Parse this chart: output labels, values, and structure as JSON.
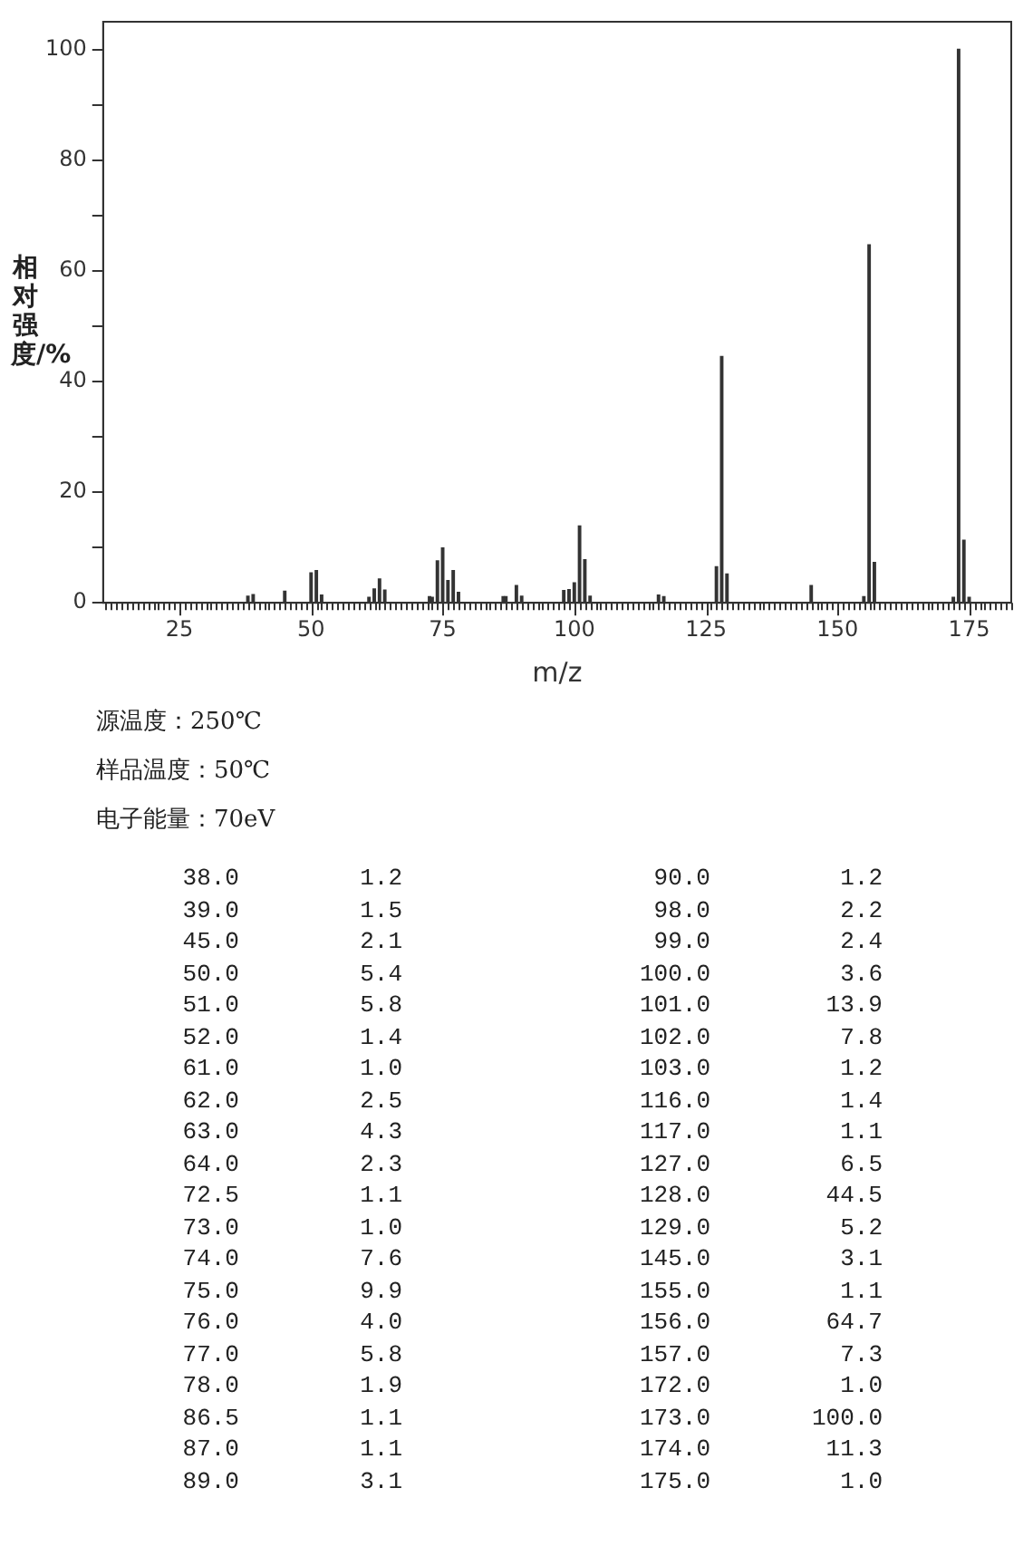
{
  "chart_data": [
    {
      "type": "bar",
      "xlabel": "m/z",
      "ylabel": "相对强度/%",
      "color": "#333333",
      "x": [
        38,
        39,
        45,
        50,
        51,
        52,
        61,
        62,
        63,
        64,
        72.5,
        73,
        74,
        75,
        76,
        77,
        78,
        86.5,
        87,
        89,
        90,
        98,
        99,
        100,
        101,
        102,
        103,
        116,
        117,
        127,
        128,
        129,
        145,
        155,
        156,
        157,
        172,
        173,
        174,
        175
      ],
      "values": [
        1.2,
        1.5,
        2.1,
        5.4,
        5.8,
        1.4,
        1.0,
        2.5,
        4.3,
        2.3,
        1.1,
        1.0,
        7.6,
        9.9,
        4.0,
        5.8,
        1.9,
        1.1,
        1.1,
        3.1,
        1.2,
        2.2,
        2.4,
        3.6,
        13.9,
        7.8,
        1.2,
        1.4,
        1.1,
        6.5,
        44.5,
        5.2,
        3.1,
        1.1,
        64.7,
        7.3,
        1.0,
        100.0,
        11.3,
        1.0
      ],
      "xlim": [
        10.5,
        183
      ],
      "xticks": [
        25,
        50,
        75,
        100,
        125,
        150,
        175
      ],
      "ylim": [
        0,
        105
      ],
      "yticks": [
        0,
        {
          "value": 10,
          "label": null
        },
        20,
        {
          "value": 30,
          "label": null
        },
        40,
        {
          "value": 50,
          "label": null
        },
        60,
        {
          "value": 70,
          "label": null
        },
        80,
        {
          "value": 90,
          "label": null
        },
        100
      ],
      "grid": false,
      "legend": false,
      "annotations": [
        "源温度：250℃",
        "样品温度：50℃",
        "电子能量：70eV"
      ]
    },
    {
      "type": "other",
      "annotations": [
        "38.0",
        "1.2",
        "90.0",
        "1.2",
        "39.0",
        "1.5",
        "98.0",
        "2.2",
        "45.0",
        "2.1",
        "99.0",
        "2.4",
        "50.0",
        "5.4",
        "100.0",
        "3.6",
        "51.0",
        "5.8",
        "101.0",
        "13.9",
        "52.0",
        "1.4",
        "102.0",
        "7.8",
        "61.0",
        "1.0",
        "103.0",
        "1.2",
        "62.0",
        "2.5",
        "116.0",
        "1.4",
        "63.0",
        "4.3",
        "117.0",
        "1.1",
        "64.0",
        "2.3",
        "127.0",
        "6.5",
        "72.5",
        "1.1",
        "128.0",
        "44.5",
        "73.0",
        "1.0",
        "129.0",
        "5.2",
        "74.0",
        "7.6",
        "145.0",
        "3.1",
        "75.0",
        "9.9",
        "155.0",
        "1.1",
        "76.0",
        "4.0",
        "156.0",
        "64.7",
        "77.0",
        "5.8",
        "157.0",
        "7.3",
        "78.0",
        "1.9",
        "172.0",
        "1.0",
        "86.5",
        "1.1",
        "173.0",
        "100.0",
        "87.0",
        "1.1",
        "174.0",
        "11.3",
        "89.0",
        "3.1",
        "175.0",
        "1.0"
      ]
    }
  ]
}
